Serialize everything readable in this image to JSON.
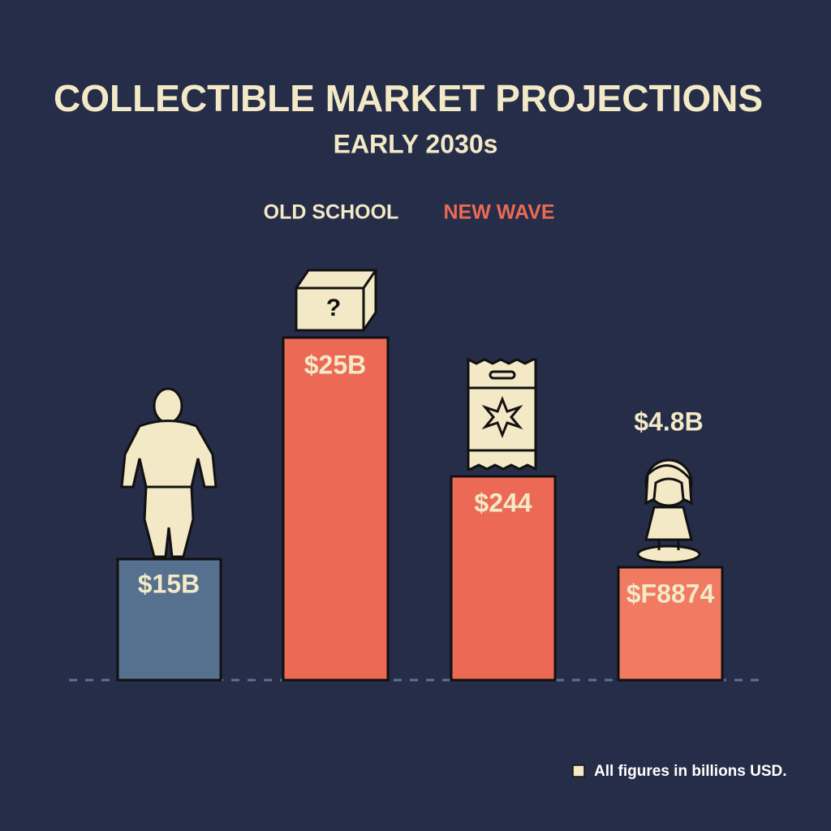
{
  "header": {
    "title": "COLLECTIBLE MARKET PROJECTIONS",
    "subtitle": "EARLY 2030s"
  },
  "legend": [
    "OLD SCHOOL",
    "NEW WAVE"
  ],
  "bars": [
    {
      "label": "$15B"
    },
    {
      "label": "$25B"
    },
    {
      "label": "$244"
    },
    {
      "label": "$F8874",
      "top_label": "$4.8B"
    }
  ],
  "footnote": "All figures in billions USD."
}
